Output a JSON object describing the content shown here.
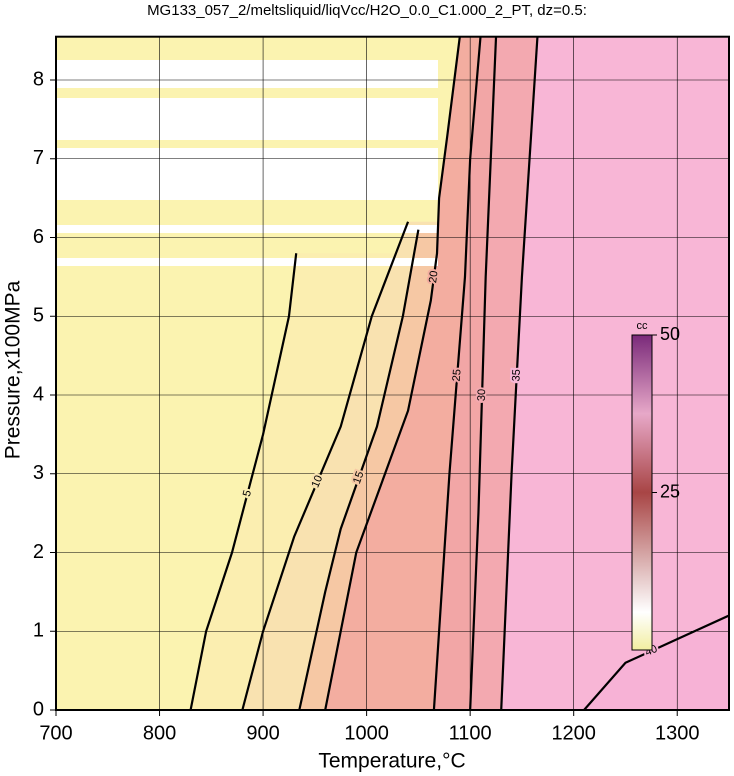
{
  "chart_data": {
    "type": "contour",
    "title": "MG133_057_2/meltsliquid/liqVcc/H2O_0.0_C1.000_2_PT, dz=0.5:",
    "x_label": "Temperature,°C",
    "y_label": "Pressure,x100MPa",
    "xlim": [
      700,
      1350
    ],
    "xticks": [
      700,
      800,
      900,
      1000,
      1100,
      1200,
      1300
    ],
    "ylim": [
      0,
      8.55
    ],
    "yticks": [
      0,
      1,
      2,
      3,
      4,
      5,
      6,
      7,
      8
    ],
    "grid": true,
    "base_color": "#fbf3b0",
    "contours": [
      {
        "level": 5,
        "color": "#fbeeb0",
        "x": [
          830,
          845,
          870,
          900,
          925,
          932
        ],
        "y": [
          0,
          1,
          2,
          3.5,
          5,
          5.8
        ]
      },
      {
        "level": 10,
        "color": "#f9e2b0",
        "x": [
          880,
          900,
          930,
          975,
          1005,
          1040
        ],
        "y": [
          0,
          1,
          2.2,
          3.6,
          5,
          6.2
        ]
      },
      {
        "level": 15,
        "color": "#f6c8a4",
        "x": [
          935,
          960,
          975,
          1010,
          1035,
          1050
        ],
        "y": [
          0,
          1.5,
          2.3,
          3.6,
          5,
          6.1
        ]
      },
      {
        "level": 20,
        "color": "#f3ada0",
        "x": [
          960,
          990,
          1040,
          1062,
          1068,
          1070,
          1078,
          1090
        ],
        "y": [
          0,
          2,
          3.8,
          5.2,
          5.8,
          6.5,
          7.3,
          8.55
        ]
      },
      {
        "level": 25,
        "color": "#f2a6a6",
        "x": [
          1065,
          1075,
          1080,
          1095,
          1100,
          1110
        ],
        "y": [
          0,
          2,
          3,
          5.5,
          7,
          8.55
        ]
      },
      {
        "level": 30,
        "color": "#f3a9b0",
        "x": [
          1100,
          1108,
          1115,
          1125
        ],
        "y": [
          0,
          2.5,
          5.5,
          8.55
        ]
      },
      {
        "level": 35,
        "color": "#f8b6d6",
        "x": [
          1130,
          1140,
          1150,
          1165
        ],
        "y": [
          0,
          3,
          5.5,
          8.55
        ]
      },
      {
        "level": 40,
        "color": "#f7b2d6",
        "x": [
          1210,
          1250,
          1300,
          1350
        ],
        "y": [
          0,
          0.6,
          0.9,
          1.2
        ]
      }
    ],
    "colorbar": {
      "label": "cc",
      "lim": [
        0,
        50
      ],
      "ticks": [
        25,
        50
      ]
    }
  }
}
